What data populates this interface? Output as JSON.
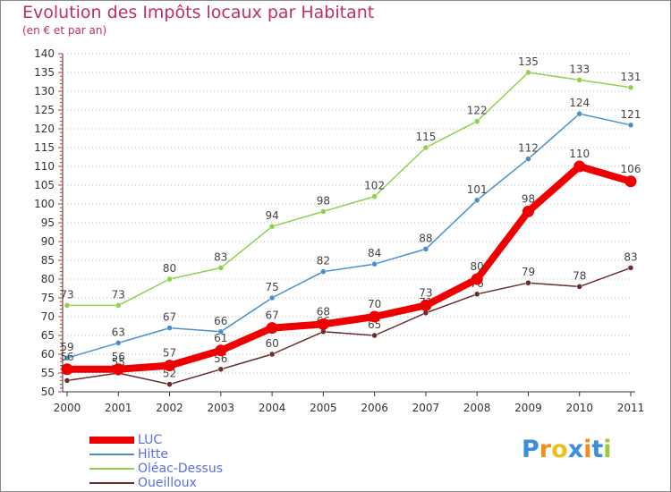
{
  "title": "Evolution des Impôts locaux par Habitant",
  "subtitle": "(en € et par an)",
  "brand": {
    "letters": [
      "P",
      "r",
      "o",
      "x",
      "i",
      "t",
      "i"
    ],
    "colors": [
      "#3a8fd8",
      "#f28c1e",
      "#e8c21a",
      "#3a8fd8",
      "#f28c1e",
      "#3a8fd8",
      "#9acd32"
    ]
  },
  "chart_data": {
    "type": "line",
    "title": "Evolution des Impôts locaux par Habitant",
    "ylabel": "(en € et par an)",
    "xlabel": "",
    "x": [
      "2000",
      "2001",
      "2002",
      "2003",
      "2004",
      "2005",
      "2006",
      "2007",
      "2008",
      "2009",
      "2010",
      "2011"
    ],
    "ylim": [
      50,
      140
    ],
    "yticks": [
      50,
      55,
      60,
      65,
      70,
      75,
      80,
      85,
      90,
      95,
      100,
      105,
      110,
      115,
      120,
      125,
      130,
      135,
      140
    ],
    "legend_position": "bottom-left",
    "series": [
      {
        "name": "Oléac-Dessus",
        "color": "#8fd14f",
        "values": [
          73,
          73,
          80,
          83,
          94,
          98,
          102,
          115,
          122,
          135,
          133,
          131
        ]
      },
      {
        "name": "Hitte",
        "color": "#4a8fcc",
        "values": [
          59,
          63,
          67,
          66,
          75,
          82,
          84,
          88,
          101,
          112,
          124,
          121
        ]
      },
      {
        "name": "Oueilloux",
        "color": "#6b2d2d",
        "values": [
          53,
          55,
          52,
          56,
          60,
          66,
          65,
          71,
          76,
          79,
          78,
          83
        ]
      },
      {
        "name": "LUC",
        "color": "#ee0000",
        "values": [
          56,
          56,
          57,
          61,
          67,
          68,
          70,
          73,
          80,
          98,
          110,
          106
        ]
      }
    ],
    "legend_order": [
      "LUC",
      "Hitte",
      "Oléac-Dessus",
      "Oueilloux"
    ]
  }
}
